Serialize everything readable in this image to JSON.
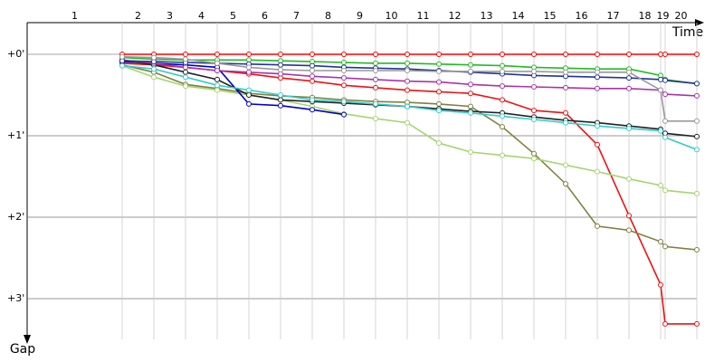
{
  "chart_data": {
    "type": "line",
    "x_label": "Time",
    "y_label": "Gap",
    "laps": [
      1,
      2,
      3,
      4,
      5,
      6,
      7,
      8,
      9,
      10,
      11,
      12,
      13,
      14,
      15,
      16,
      17,
      18,
      19,
      20
    ],
    "x": [
      105,
      140,
      175,
      210,
      245,
      280,
      315,
      350,
      385,
      420,
      455,
      490,
      525,
      560,
      595,
      630,
      665,
      700,
      705,
      740
    ],
    "xlim": [
      0,
      770
    ],
    "ylim": [
      -0.4,
      3.5
    ],
    "yticks": [
      {
        "value": 0,
        "label": "+0'"
      },
      {
        "value": 1,
        "label": "+1'"
      },
      {
        "value": 2,
        "label": "+2'"
      },
      {
        "value": 3,
        "label": "+3'"
      }
    ],
    "grid": true,
    "series": [
      {
        "color": "#ff0000",
        "values": [
          0,
          0,
          0,
          0,
          0,
          0,
          0,
          0,
          0,
          0,
          0,
          0,
          0,
          0,
          0,
          0,
          0,
          0,
          0,
          0
        ]
      },
      {
        "color": "#ee1111",
        "values": [
          0.11,
          0.13,
          0.16,
          0.2,
          0.24,
          0.29,
          0.33,
          0.38,
          0.41,
          0.44,
          0.46,
          0.48,
          0.56,
          0.69,
          0.72,
          1.11,
          1.98,
          2.83,
          3.31,
          3.31
        ]
      },
      {
        "color": "#808040",
        "values": [
          0.13,
          0.22,
          0.37,
          0.42,
          0.48,
          0.51,
          0.53,
          0.56,
          0.58,
          0.59,
          0.61,
          0.64,
          0.89,
          1.22,
          1.59,
          2.11,
          2.16,
          2.3,
          2.36,
          2.4
        ]
      },
      {
        "color": "#a6d470",
        "values": [
          0.14,
          0.28,
          0.39,
          0.44,
          0.5,
          0.56,
          0.64,
          0.73,
          0.79,
          0.84,
          1.09,
          1.2,
          1.24,
          1.28,
          1.36,
          1.44,
          1.53,
          1.61,
          1.67,
          1.71
        ]
      },
      {
        "color": "#0000cc",
        "values": [
          0.09,
          0.11,
          0.13,
          0.16,
          0.61,
          0.63,
          0.68,
          0.74,
          null,
          null,
          null,
          null,
          null,
          null,
          null,
          null,
          null,
          null,
          null,
          null
        ]
      },
      {
        "color": "#222222",
        "values": [
          0.07,
          0.13,
          0.22,
          0.31,
          0.5,
          0.56,
          0.58,
          0.6,
          0.62,
          0.64,
          0.67,
          0.7,
          0.72,
          0.77,
          0.81,
          0.84,
          0.88,
          0.92,
          0.97,
          1.01
        ]
      },
      {
        "color": "#33cccc",
        "values": [
          0.14,
          0.18,
          0.28,
          0.38,
          0.44,
          0.5,
          0.56,
          0.58,
          0.61,
          0.64,
          0.69,
          0.72,
          0.76,
          0.8,
          0.84,
          0.88,
          0.91,
          0.94,
          1.02,
          1.17
        ]
      },
      {
        "color": "#22bb22",
        "values": [
          0.04,
          0.06,
          0.07,
          0.07,
          0.07,
          0.08,
          0.09,
          0.1,
          0.11,
          0.11,
          0.12,
          0.13,
          0.14,
          0.16,
          0.17,
          0.18,
          0.18,
          0.26,
          0.31,
          0.36
        ]
      },
      {
        "color": "#aa33aa",
        "values": [
          0.07,
          0.11,
          0.16,
          0.2,
          0.22,
          0.24,
          0.27,
          0.29,
          0.31,
          0.33,
          0.34,
          0.37,
          0.39,
          0.4,
          0.41,
          0.42,
          0.42,
          0.44,
          0.49,
          0.51
        ]
      },
      {
        "color": "#223399",
        "values": [
          0.08,
          0.09,
          0.1,
          0.11,
          0.12,
          0.13,
          0.14,
          0.16,
          0.17,
          0.18,
          0.2,
          0.22,
          0.24,
          0.26,
          0.27,
          0.28,
          0.29,
          0.31,
          0.32,
          0.36
        ]
      },
      {
        "color": "#999999",
        "values": [
          0.03,
          0.04,
          0.06,
          0.11,
          0.16,
          0.19,
          0.2,
          0.2,
          0.2,
          0.2,
          0.21,
          0.21,
          0.21,
          0.21,
          0.22,
          0.22,
          0.22,
          0.44,
          0.82,
          0.82
        ]
      }
    ]
  }
}
